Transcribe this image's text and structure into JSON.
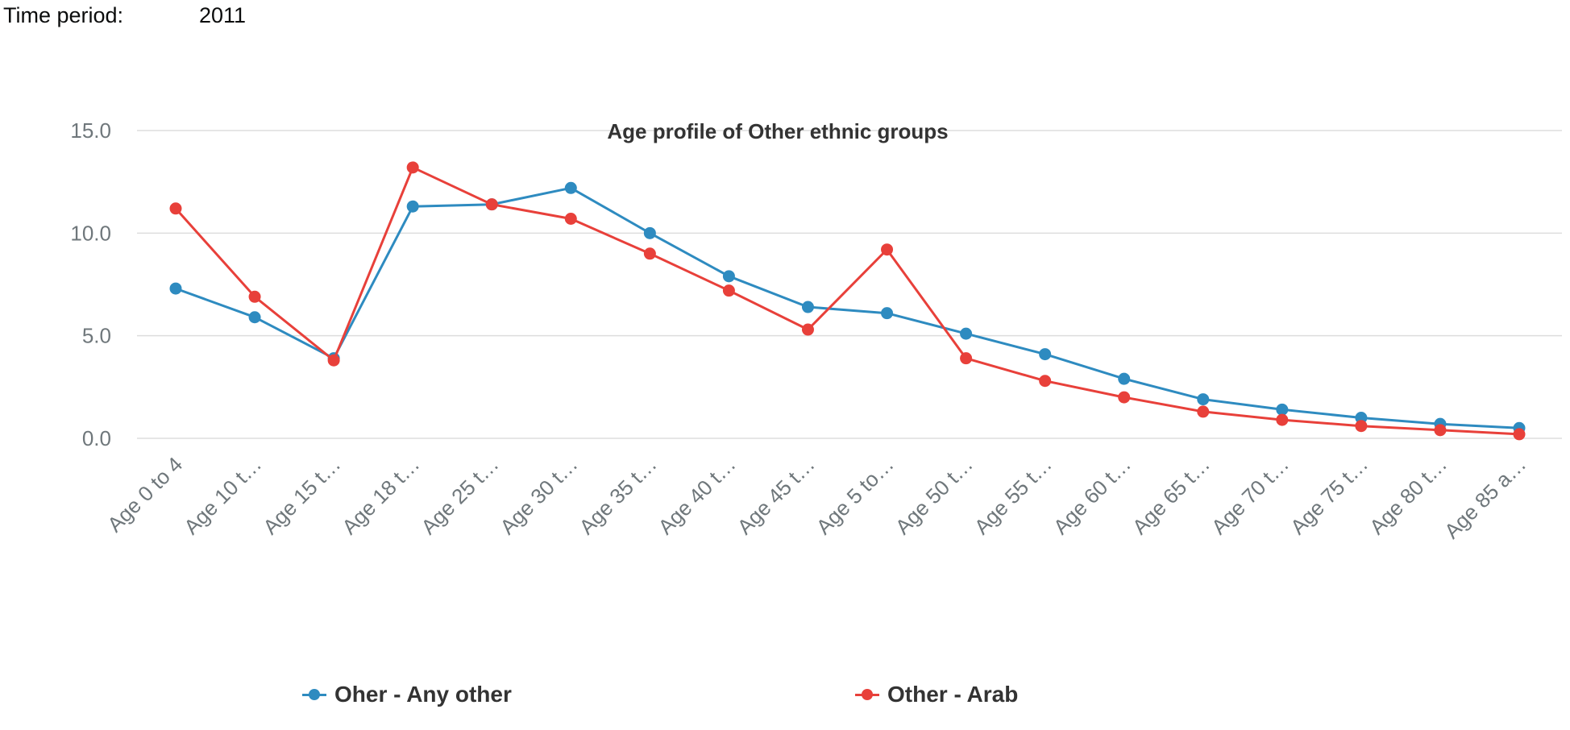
{
  "header": {
    "time_period_label": "Time period:",
    "time_period_value": "2011"
  },
  "colors": {
    "series_blue": "#2e8bc0",
    "series_red": "#e8403a",
    "grid": "#dddddd",
    "axis_text": "#6f777b",
    "title_text": "#333333"
  },
  "chart_data": {
    "type": "line",
    "title": "Age profile of Other ethnic groups",
    "xlabel": "",
    "ylabel": "",
    "ylim": [
      0,
      15
    ],
    "yticks": [
      0,
      5,
      10,
      15
    ],
    "ytick_labels": [
      "0.0",
      "5.0",
      "10.0",
      "15.0"
    ],
    "grid": true,
    "legend_position": "bottom",
    "categories": [
      "Age 0 to 4",
      "Age 10 t…",
      "Age 15 t…",
      "Age 18 t…",
      "Age 25 t…",
      "Age 30 t…",
      "Age 35 t…",
      "Age 40 t…",
      "Age 45 t…",
      "Age 5 to…",
      "Age 50 t…",
      "Age 55 t…",
      "Age 60 t…",
      "Age 65 t…",
      "Age 70 t…",
      "Age 75 t…",
      "Age 80 t…",
      "Age 85 a…"
    ],
    "series": [
      {
        "name": "Oher - Any other",
        "color": "#2e8bc0",
        "values": [
          7.3,
          5.9,
          3.9,
          11.3,
          11.4,
          12.2,
          10.0,
          7.9,
          6.4,
          6.1,
          5.1,
          4.1,
          2.9,
          1.9,
          1.4,
          1.0,
          0.7,
          0.5
        ]
      },
      {
        "name": "Other - Arab",
        "color": "#e8403a",
        "values": [
          11.2,
          6.9,
          3.8,
          13.2,
          11.4,
          10.7,
          9.0,
          7.2,
          5.3,
          9.2,
          3.9,
          2.8,
          2.0,
          1.3,
          0.9,
          0.6,
          0.4,
          0.2
        ]
      }
    ]
  }
}
